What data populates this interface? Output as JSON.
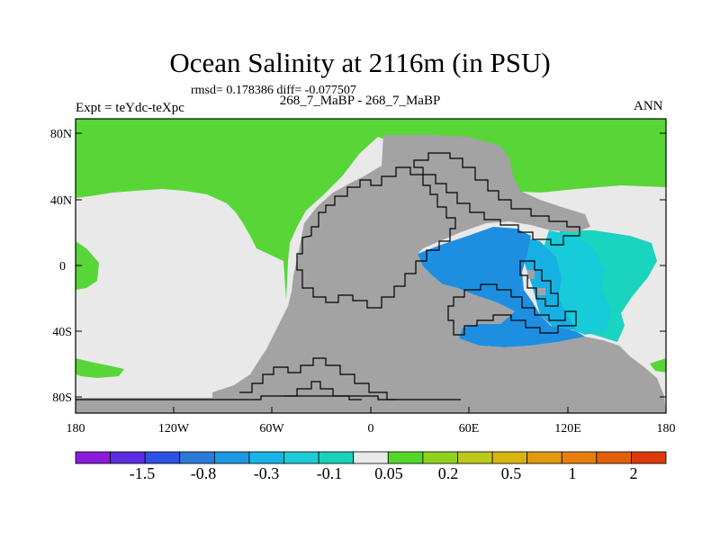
{
  "title": "Ocean Salinity at 2116m (in PSU)",
  "stats": "rmsd= 0.178386 diff= -0.077507",
  "subtitle": "268_7_MaBP - 268_7_MaBP",
  "expt": "Expt = teYdc-teXpc",
  "season": "ANN",
  "lat_ticks": [
    "80N",
    "40N",
    "0",
    "40S",
    "80S"
  ],
  "lon_ticks": [
    "180",
    "120W",
    "60W",
    "0",
    "60E",
    "120E",
    "180"
  ],
  "colorbar": {
    "labels": [
      "-1.5",
      "-0.8",
      "-0.3",
      "-0.1",
      "0.05",
      "0.2",
      "0.5",
      "1",
      "2"
    ],
    "colors": [
      "#8a1bd8",
      "#5a2ee0",
      "#2e52e6",
      "#2c7ad8",
      "#1e98e0",
      "#18b4e6",
      "#1ccbd6",
      "#1ad2ba",
      "#e9e9e9",
      "#55d72a",
      "#8ed21e",
      "#bcc81c",
      "#d8b40f",
      "#e09b0e",
      "#e57e0d",
      "#e2600c",
      "#dc3a0a"
    ]
  },
  "map_colors": {
    "land": "#a3a3a3",
    "near_zero": "#e9e9e9",
    "positive_small": "#58d638",
    "negative_strong": "#1e8fe0",
    "negative_mid": "#18b0e3",
    "negative_light": "#17cbd8",
    "negative_faint": "#1ad4bf"
  }
}
